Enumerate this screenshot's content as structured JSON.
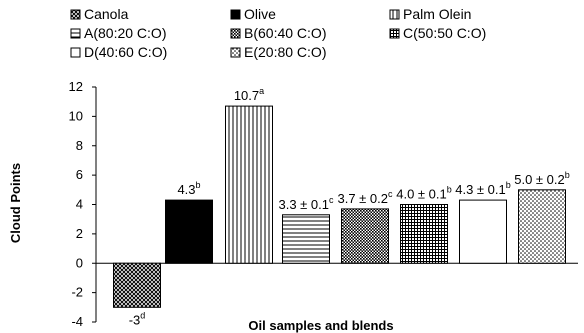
{
  "chart_data": {
    "type": "bar",
    "title": "",
    "xlabel": "Oil samples and blends",
    "ylabel": "Cloud Points",
    "ylim": [
      -4,
      12
    ],
    "yticks": [
      -4,
      -2,
      0,
      2,
      4,
      6,
      8,
      10,
      12
    ],
    "grid": false,
    "legend_position": "top",
    "categories": [
      "Canola",
      "Olive",
      "Palm Olein",
      "A(80:20 C:O)",
      "B(60:40 C:O)",
      "C(50:50 C:O)",
      "D(40:60 C:O)",
      "E(20:80 C:O)"
    ],
    "values": [
      -3,
      4.3,
      10.7,
      3.3,
      3.7,
      4.0,
      4.3,
      5.0
    ],
    "data_labels": [
      {
        "text": "-3",
        "sup": "d"
      },
      {
        "text": "4.3",
        "sup": "b"
      },
      {
        "text": "10.7",
        "sup": "a"
      },
      {
        "text": "3.3 ± 0.1",
        "sup": "c"
      },
      {
        "text": "3.7 ± 0.2",
        "sup": "c"
      },
      {
        "text": "4.0 ± 0.1",
        "sup": "b"
      },
      {
        "text": "4.3 ± 0.1",
        "sup": "b"
      },
      {
        "text": "5.0 ± 0.2",
        "sup": "b"
      }
    ],
    "patterns": [
      "crosshatch",
      "solid-black",
      "vertical-lines",
      "horizontal-lines",
      "dense-dots",
      "grid",
      "white",
      "sparse-dots"
    ]
  }
}
